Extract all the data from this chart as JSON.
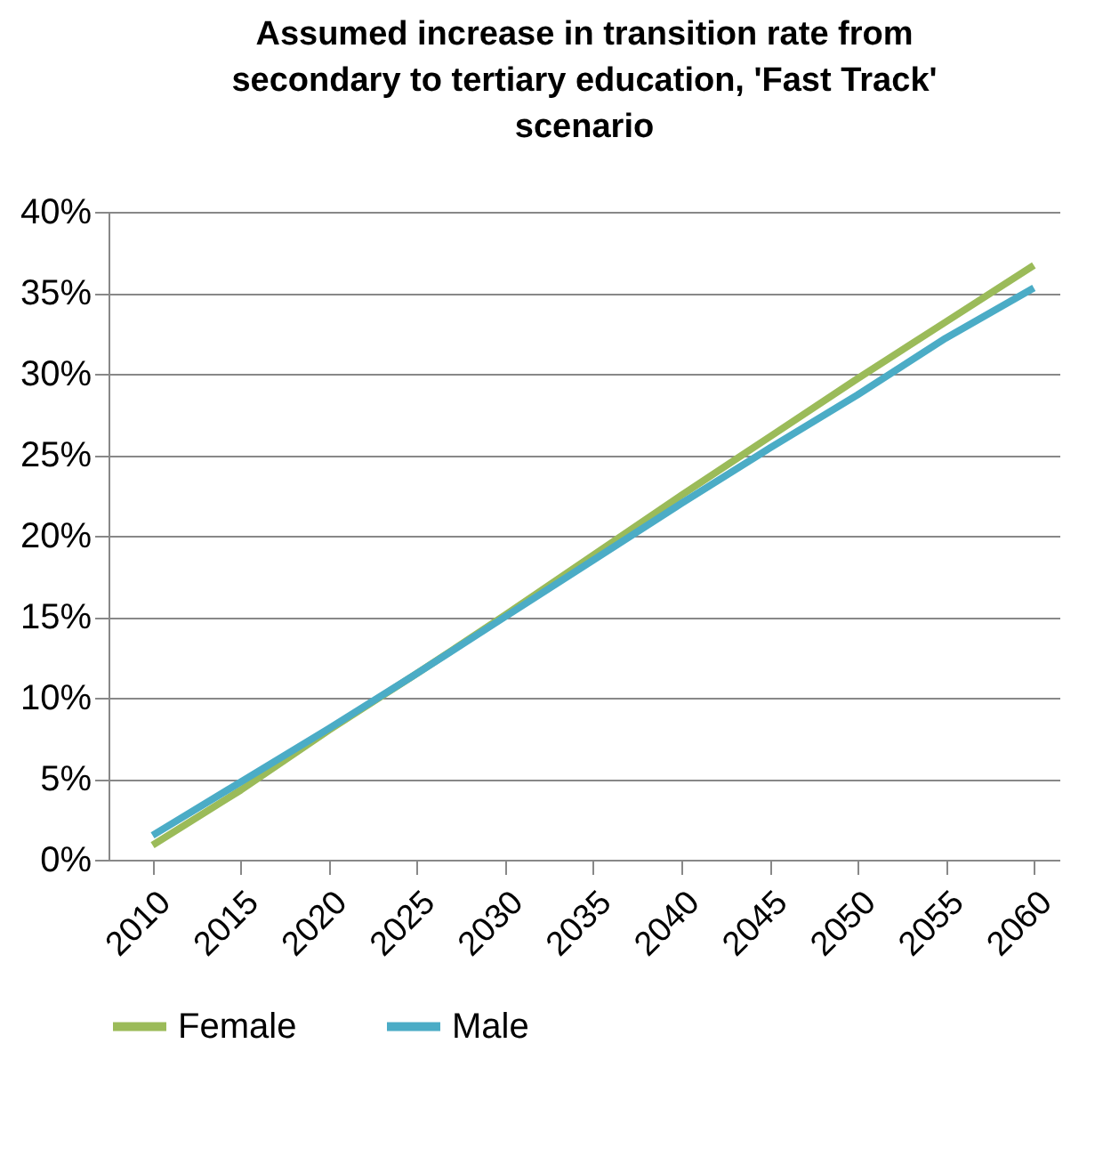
{
  "chart_data": {
    "type": "line",
    "title": "Assumed increase in transition rate from secondary to tertiary education, 'Fast Track' scenario",
    "x": [
      2010,
      2015,
      2020,
      2025,
      2030,
      2035,
      2040,
      2045,
      2050,
      2055,
      2060
    ],
    "series": [
      {
        "name": "Female",
        "color": "#9bbb59",
        "values": [
          0.9,
          4.3,
          8.0,
          11.5,
          15.1,
          18.8,
          22.5,
          26.1,
          29.7,
          33.2,
          36.7
        ]
      },
      {
        "name": "Male",
        "color": "#4bacc6",
        "values": [
          1.5,
          4.8,
          8.1,
          11.5,
          15.0,
          18.5,
          22.0,
          25.4,
          28.7,
          32.2,
          35.3
        ]
      }
    ],
    "xlim": [
      2007.5,
      2061.5
    ],
    "xticks": [
      2010,
      2015,
      2020,
      2025,
      2030,
      2035,
      2040,
      2045,
      2050,
      2055,
      2060
    ],
    "ylim": [
      0,
      40
    ],
    "yticks": [
      {
        "value": 0,
        "label": "0%"
      },
      {
        "value": 5,
        "label": "5%"
      },
      {
        "value": 10,
        "label": "10%"
      },
      {
        "value": 15,
        "label": "15%"
      },
      {
        "value": 20,
        "label": "20%"
      },
      {
        "value": 25,
        "label": "25%"
      },
      {
        "value": 30,
        "label": "30%"
      },
      {
        "value": 35,
        "label": "35%"
      },
      {
        "value": 40,
        "label": "40%"
      }
    ],
    "grid": "y",
    "legend": "bottom",
    "marker": "none",
    "line_style": "solid"
  }
}
